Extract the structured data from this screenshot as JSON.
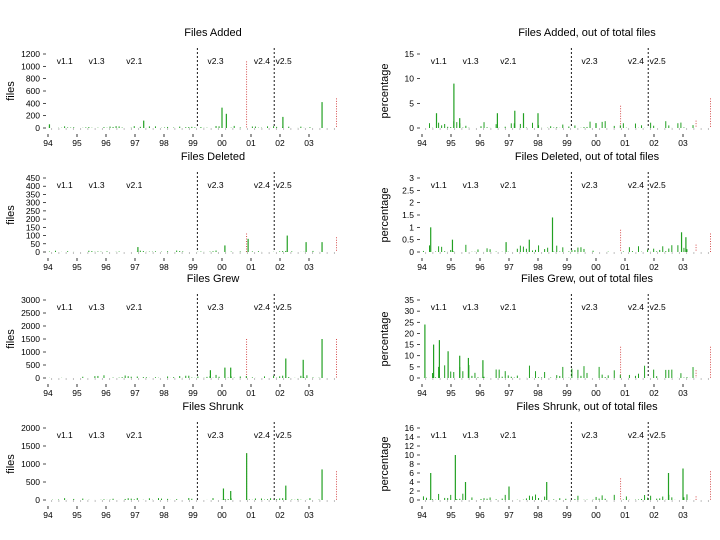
{
  "figure": {
    "x_ticks": [
      "94",
      "95",
      "96",
      "97",
      "98",
      "99",
      "00",
      "01",
      "02",
      "03"
    ],
    "version_labels": [
      "v1.1",
      "v1.3",
      "v2.1",
      "v2.3",
      "v2.4",
      "v2.5"
    ],
    "colors": {
      "bars": "#22a022",
      "release_line": "#000000",
      "marker_line": "#cc2222"
    }
  },
  "chart_data": [
    {
      "id": "added-files",
      "type": "bar",
      "title": "Files Added",
      "xlabel": "",
      "ylabel": "files",
      "ylim": [
        0,
        1200
      ],
      "yticks": [
        "0",
        "200",
        "400",
        "600",
        "800",
        "1000",
        "1200"
      ],
      "x_range": [
        1994,
        2004
      ],
      "seed": 11,
      "spikes": [
        [
          1994.05,
          60
        ],
        [
          1997.3,
          120
        ],
        [
          2000.0,
          330
        ],
        [
          2000.15,
          230
        ],
        [
          2002.1,
          180
        ],
        [
          2003.45,
          420
        ]
      ],
      "base_level": 40,
      "marker_levels": [
        0.9,
        0.05,
        0.4
      ]
    },
    {
      "id": "added-pct",
      "type": "bar",
      "title": "Files Added, out of total files",
      "xlabel": "",
      "ylabel": "percentage",
      "ylim": [
        0,
        15
      ],
      "yticks": [
        "0",
        "5",
        "10",
        "15"
      ],
      "x_range": [
        1994,
        2004
      ],
      "seed": 12,
      "spikes": [
        [
          1994.5,
          3
        ],
        [
          1995.1,
          9
        ],
        [
          1995.3,
          2
        ],
        [
          1996.6,
          3
        ],
        [
          1997.2,
          3.5
        ],
        [
          1997.5,
          3
        ],
        [
          1998.0,
          3
        ],
        [
          2000.0,
          1
        ]
      ],
      "base_level": 1.5,
      "marker_levels": [
        0.3,
        0.1,
        0.4
      ]
    },
    {
      "id": "deleted-files",
      "type": "bar",
      "title": "Files Deleted",
      "xlabel": "",
      "ylabel": "files",
      "ylim": [
        0,
        450
      ],
      "yticks": [
        "0",
        "50",
        "100",
        "150",
        "200",
        "250",
        "300",
        "350",
        "400",
        "450"
      ],
      "x_range": [
        1994,
        2004
      ],
      "seed": 13,
      "spikes": [
        [
          1997.1,
          30
        ],
        [
          2000.1,
          40
        ],
        [
          2000.9,
          80
        ],
        [
          2002.25,
          100
        ],
        [
          2002.9,
          60
        ],
        [
          2003.45,
          60
        ]
      ],
      "base_level": 10,
      "marker_levels": [
        0.25,
        0.05,
        0.2
      ]
    },
    {
      "id": "deleted-pct",
      "type": "bar",
      "title": "Files Deleted, out of total files",
      "xlabel": "",
      "ylabel": "percentage",
      "ylim": [
        0,
        3
      ],
      "yticks": [
        "0",
        "0.5",
        "1",
        "1.5",
        "2",
        "2.5",
        "3"
      ],
      "x_range": [
        1994,
        2004
      ],
      "seed": 14,
      "spikes": [
        [
          1994.3,
          1
        ],
        [
          1995.05,
          0.5
        ],
        [
          1996.9,
          0.4
        ],
        [
          1997.7,
          0.5
        ],
        [
          1998.5,
          1.4
        ],
        [
          2002.95,
          0.8
        ],
        [
          2003.1,
          0.6
        ]
      ],
      "base_level": 0.3,
      "marker_levels": [
        0.3,
        0.1,
        0.25
      ]
    },
    {
      "id": "grew-files",
      "type": "bar",
      "title": "Files Grew",
      "xlabel": "",
      "ylabel": "files",
      "ylim": [
        0,
        3000
      ],
      "yticks": [
        "0",
        "500",
        "1000",
        "1500",
        "2000",
        "2500",
        "3000"
      ],
      "x_range": [
        1994,
        2004
      ],
      "seed": 15,
      "spikes": [
        [
          1999.6,
          300
        ],
        [
          2000.1,
          400
        ],
        [
          2000.3,
          400
        ],
        [
          2002.2,
          750
        ],
        [
          2002.8,
          700
        ],
        [
          2003.45,
          1500
        ]
      ],
      "base_level": 120,
      "marker_levels": [
        0.5,
        0.1,
        0.5
      ]
    },
    {
      "id": "grew-pct",
      "type": "bar",
      "title": "Files Grew, out of total files",
      "xlabel": "",
      "ylabel": "percentage",
      "ylim": [
        0,
        35
      ],
      "yticks": [
        "0",
        "5",
        "10",
        "15",
        "20",
        "25",
        "30",
        "35"
      ],
      "x_range": [
        1994,
        2004
      ],
      "seed": 16,
      "spikes": [
        [
          1994.1,
          24
        ],
        [
          1994.4,
          15
        ],
        [
          1994.6,
          17
        ],
        [
          1994.9,
          12
        ],
        [
          1995.3,
          10
        ],
        [
          1995.6,
          9
        ],
        [
          1996.1,
          8
        ]
      ],
      "base_level": 6,
      "marker_levels": [
        0.4,
        0.1,
        0.4
      ]
    },
    {
      "id": "shrunk-files",
      "type": "bar",
      "title": "Files Shrunk",
      "xlabel": "",
      "ylabel": "files",
      "ylim": [
        0,
        2000
      ],
      "yticks": [
        "0",
        "500",
        "1000",
        "1500",
        "2000"
      ],
      "x_range": [
        1994,
        2004
      ],
      "seed": 17,
      "spikes": [
        [
          2000.05,
          320
        ],
        [
          2000.3,
          250
        ],
        [
          2000.85,
          1300
        ],
        [
          2002.2,
          400
        ],
        [
          2003.45,
          850
        ]
      ],
      "base_level": 60,
      "marker_levels": [
        0.65,
        0.05,
        0.4
      ]
    },
    {
      "id": "shrunk-pct",
      "type": "bar",
      "title": "Files Shrunk, out of total files",
      "xlabel": "",
      "ylabel": "percentage",
      "ylim": [
        0,
        16
      ],
      "yticks": [
        "0",
        "2",
        "4",
        "6",
        "8",
        "10",
        "12",
        "14",
        "16"
      ],
      "x_range": [
        1994,
        2004
      ],
      "seed": 18,
      "spikes": [
        [
          1994.3,
          6
        ],
        [
          1995.15,
          10
        ],
        [
          1995.5,
          4
        ],
        [
          1997.0,
          3
        ],
        [
          1998.3,
          4
        ],
        [
          2002.5,
          6
        ],
        [
          2003.0,
          7
        ]
      ],
      "base_level": 1.5,
      "marker_levels": [
        0.3,
        0.05,
        0.4
      ]
    }
  ]
}
